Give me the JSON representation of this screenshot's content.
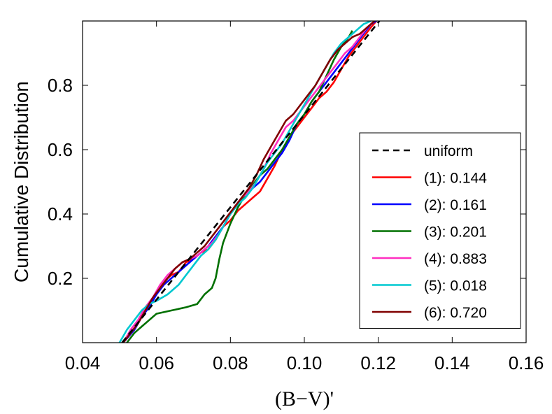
{
  "chart_data": {
    "type": "line",
    "xlabel": "(B−V)'",
    "ylabel": "Cumulative Distribution",
    "xlim": [
      0.04,
      0.16
    ],
    "ylim": [
      0.0,
      1.0
    ],
    "xticks": [
      "0.04",
      "0.06",
      "0.08",
      "0.10",
      "0.12",
      "0.14",
      "0.16"
    ],
    "yticks": [
      "0.2",
      "0.4",
      "0.6",
      "0.8"
    ],
    "grid": false,
    "legend_position": "lower-right",
    "reference": {
      "name": "uniform",
      "style": "dashed",
      "color": "#000000",
      "points": [
        [
          0.0507,
          0.0
        ],
        [
          0.1203,
          1.0
        ]
      ]
    },
    "series": [
      {
        "name": "(1): 0.144",
        "color": "#ff0000",
        "points": [
          [
            0.051,
            0.0
          ],
          [
            0.054,
            0.04
          ],
          [
            0.056,
            0.08
          ],
          [
            0.058,
            0.12
          ],
          [
            0.06,
            0.15
          ],
          [
            0.062,
            0.19
          ],
          [
            0.064,
            0.21
          ],
          [
            0.066,
            0.22
          ],
          [
            0.068,
            0.25
          ],
          [
            0.07,
            0.26
          ],
          [
            0.072,
            0.28
          ],
          [
            0.074,
            0.29
          ],
          [
            0.076,
            0.32
          ],
          [
            0.078,
            0.36
          ],
          [
            0.08,
            0.38
          ],
          [
            0.082,
            0.41
          ],
          [
            0.084,
            0.43
          ],
          [
            0.086,
            0.45
          ],
          [
            0.088,
            0.47
          ],
          [
            0.09,
            0.51
          ],
          [
            0.092,
            0.55
          ],
          [
            0.094,
            0.6
          ],
          [
            0.096,
            0.64
          ],
          [
            0.098,
            0.67
          ],
          [
            0.1,
            0.7
          ],
          [
            0.102,
            0.73
          ],
          [
            0.104,
            0.76
          ],
          [
            0.106,
            0.78
          ],
          [
            0.108,
            0.81
          ],
          [
            0.11,
            0.85
          ],
          [
            0.112,
            0.89
          ],
          [
            0.114,
            0.92
          ],
          [
            0.116,
            0.95
          ],
          [
            0.118,
            0.98
          ],
          [
            0.1195,
            1.0
          ]
        ]
      },
      {
        "name": "(2): 0.161",
        "color": "#0000ff",
        "points": [
          [
            0.051,
            0.0
          ],
          [
            0.054,
            0.04
          ],
          [
            0.056,
            0.08
          ],
          [
            0.058,
            0.11
          ],
          [
            0.06,
            0.15
          ],
          [
            0.062,
            0.18
          ],
          [
            0.064,
            0.2
          ],
          [
            0.066,
            0.22
          ],
          [
            0.068,
            0.24
          ],
          [
            0.07,
            0.26
          ],
          [
            0.072,
            0.28
          ],
          [
            0.074,
            0.3
          ],
          [
            0.076,
            0.33
          ],
          [
            0.078,
            0.36
          ],
          [
            0.08,
            0.4
          ],
          [
            0.082,
            0.43
          ],
          [
            0.084,
            0.46
          ],
          [
            0.086,
            0.48
          ],
          [
            0.088,
            0.5
          ],
          [
            0.09,
            0.53
          ],
          [
            0.092,
            0.56
          ],
          [
            0.094,
            0.59
          ],
          [
            0.096,
            0.63
          ],
          [
            0.098,
            0.68
          ],
          [
            0.1,
            0.71
          ],
          [
            0.102,
            0.75
          ],
          [
            0.104,
            0.78
          ],
          [
            0.106,
            0.81
          ],
          [
            0.108,
            0.84
          ],
          [
            0.11,
            0.87
          ],
          [
            0.112,
            0.9
          ],
          [
            0.114,
            0.93
          ],
          [
            0.116,
            0.96
          ],
          [
            0.118,
            0.99
          ],
          [
            0.1195,
            1.0
          ]
        ]
      },
      {
        "name": "(3): 0.201",
        "color": "#007000",
        "points": [
          [
            0.052,
            0.0
          ],
          [
            0.054,
            0.03
          ],
          [
            0.056,
            0.05
          ],
          [
            0.058,
            0.07
          ],
          [
            0.06,
            0.09
          ],
          [
            0.064,
            0.1
          ],
          [
            0.068,
            0.11
          ],
          [
            0.071,
            0.12
          ],
          [
            0.073,
            0.15
          ],
          [
            0.075,
            0.17
          ],
          [
            0.076,
            0.2
          ],
          [
            0.077,
            0.26
          ],
          [
            0.078,
            0.31
          ],
          [
            0.08,
            0.37
          ],
          [
            0.082,
            0.42
          ],
          [
            0.084,
            0.46
          ],
          [
            0.086,
            0.49
          ],
          [
            0.088,
            0.52
          ],
          [
            0.09,
            0.54
          ],
          [
            0.092,
            0.57
          ],
          [
            0.094,
            0.6
          ],
          [
            0.096,
            0.64
          ],
          [
            0.098,
            0.68
          ],
          [
            0.1,
            0.71
          ],
          [
            0.102,
            0.75
          ],
          [
            0.104,
            0.78
          ],
          [
            0.106,
            0.83
          ],
          [
            0.108,
            0.88
          ],
          [
            0.11,
            0.92
          ],
          [
            0.112,
            0.95
          ],
          [
            0.113,
            0.97
          ]
        ]
      },
      {
        "name": "(4): 0.883",
        "color": "#ff2fc0",
        "points": [
          [
            0.051,
            0.0
          ],
          [
            0.053,
            0.04
          ],
          [
            0.055,
            0.07
          ],
          [
            0.057,
            0.11
          ],
          [
            0.059,
            0.14
          ],
          [
            0.061,
            0.18
          ],
          [
            0.063,
            0.21
          ],
          [
            0.065,
            0.23
          ],
          [
            0.067,
            0.25
          ],
          [
            0.069,
            0.26
          ],
          [
            0.071,
            0.27
          ],
          [
            0.073,
            0.29
          ],
          [
            0.075,
            0.31
          ],
          [
            0.077,
            0.34
          ],
          [
            0.079,
            0.38
          ],
          [
            0.081,
            0.42
          ],
          [
            0.083,
            0.45
          ],
          [
            0.085,
            0.47
          ],
          [
            0.087,
            0.5
          ],
          [
            0.089,
            0.54
          ],
          [
            0.091,
            0.59
          ],
          [
            0.093,
            0.63
          ],
          [
            0.095,
            0.67
          ],
          [
            0.097,
            0.69
          ],
          [
            0.099,
            0.72
          ],
          [
            0.101,
            0.75
          ],
          [
            0.103,
            0.78
          ],
          [
            0.105,
            0.81
          ],
          [
            0.107,
            0.84
          ],
          [
            0.109,
            0.87
          ],
          [
            0.111,
            0.9
          ],
          [
            0.113,
            0.92
          ],
          [
            0.115,
            0.95
          ],
          [
            0.117,
            0.98
          ],
          [
            0.119,
            1.0
          ]
        ]
      },
      {
        "name": "(5): 0.018",
        "color": "#00c8d0",
        "points": [
          [
            0.05,
            0.0
          ],
          [
            0.052,
            0.04
          ],
          [
            0.054,
            0.07
          ],
          [
            0.056,
            0.1
          ],
          [
            0.058,
            0.12
          ],
          [
            0.06,
            0.13
          ],
          [
            0.063,
            0.15
          ],
          [
            0.066,
            0.18
          ],
          [
            0.068,
            0.21
          ],
          [
            0.07,
            0.24
          ],
          [
            0.072,
            0.27
          ],
          [
            0.074,
            0.29
          ],
          [
            0.076,
            0.32
          ],
          [
            0.078,
            0.36
          ],
          [
            0.08,
            0.4
          ],
          [
            0.082,
            0.43
          ],
          [
            0.084,
            0.45
          ],
          [
            0.086,
            0.48
          ],
          [
            0.088,
            0.52
          ],
          [
            0.09,
            0.56
          ],
          [
            0.092,
            0.59
          ],
          [
            0.094,
            0.62
          ],
          [
            0.096,
            0.66
          ],
          [
            0.098,
            0.7
          ],
          [
            0.1,
            0.74
          ],
          [
            0.102,
            0.78
          ],
          [
            0.104,
            0.82
          ],
          [
            0.106,
            0.86
          ],
          [
            0.108,
            0.9
          ],
          [
            0.11,
            0.93
          ],
          [
            0.112,
            0.95
          ],
          [
            0.114,
            0.97
          ],
          [
            0.116,
            0.99
          ],
          [
            0.118,
            1.0
          ]
        ]
      },
      {
        "name": "(6): 0.720",
        "color": "#800000",
        "points": [
          [
            0.051,
            0.0
          ],
          [
            0.053,
            0.03
          ],
          [
            0.055,
            0.06
          ],
          [
            0.057,
            0.1
          ],
          [
            0.059,
            0.14
          ],
          [
            0.061,
            0.17
          ],
          [
            0.063,
            0.2
          ],
          [
            0.065,
            0.23
          ],
          [
            0.067,
            0.25
          ],
          [
            0.069,
            0.26
          ],
          [
            0.071,
            0.28
          ],
          [
            0.073,
            0.3
          ],
          [
            0.075,
            0.33
          ],
          [
            0.077,
            0.36
          ],
          [
            0.079,
            0.39
          ],
          [
            0.081,
            0.42
          ],
          [
            0.083,
            0.45
          ],
          [
            0.085,
            0.48
          ],
          [
            0.087,
            0.52
          ],
          [
            0.089,
            0.57
          ],
          [
            0.091,
            0.61
          ],
          [
            0.093,
            0.65
          ],
          [
            0.095,
            0.69
          ],
          [
            0.097,
            0.71
          ],
          [
            0.099,
            0.74
          ],
          [
            0.101,
            0.77
          ],
          [
            0.103,
            0.8
          ],
          [
            0.105,
            0.84
          ],
          [
            0.107,
            0.88
          ],
          [
            0.109,
            0.91
          ],
          [
            0.111,
            0.93
          ],
          [
            0.113,
            0.95
          ],
          [
            0.115,
            0.96
          ],
          [
            0.117,
            0.98
          ],
          [
            0.119,
            1.0
          ]
        ]
      }
    ]
  }
}
